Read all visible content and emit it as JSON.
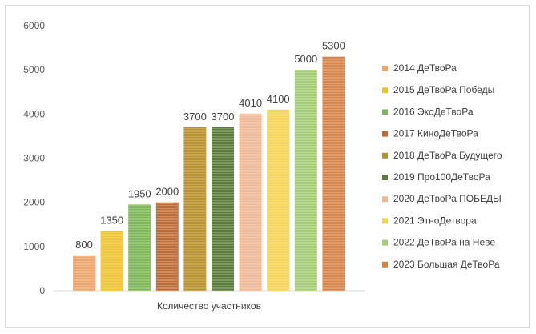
{
  "chart_data": {
    "type": "bar",
    "title": "",
    "xlabel": "",
    "ylabel": "",
    "categories": [
      "Количество участников"
    ],
    "ylim": [
      0,
      6000
    ],
    "yticks": [
      0,
      1000,
      2000,
      3000,
      4000,
      5000,
      6000
    ],
    "grid": false,
    "legend_position": "right",
    "series": [
      {
        "name": "2014 ДеТвоРа",
        "values": [
          800
        ],
        "color": "#f4a460"
      },
      {
        "name": "2015 ДеТвоРа Победы",
        "values": [
          1350
        ],
        "color": "#f5c518"
      },
      {
        "name": "2016 ЭкоДеТвоРа",
        "values": [
          1950
        ],
        "color": "#7fb850"
      },
      {
        "name": "2017 КиноДеТвоРа",
        "values": [
          2000
        ],
        "color": "#c8692c"
      },
      {
        "name": "2018 ДеТвоРа Будущего",
        "values": [
          3700
        ],
        "color": "#b8941f"
      },
      {
        "name": "2019 Про100ДеТвоРа",
        "values": [
          3700
        ],
        "color": "#5a7d3a"
      },
      {
        "name": "2020 ДеТвоРа ПОБЕДЫ",
        "values": [
          4010
        ],
        "color": "#f5b68e"
      },
      {
        "name": "2021 ЭтноДетвора",
        "values": [
          4100
        ],
        "color": "#f7d54a"
      },
      {
        "name": "2022  ДеТвоРа на Неве",
        "values": [
          5000
        ],
        "color": "#a3cf6e"
      },
      {
        "name": "2023 Большая ДеТвоРа",
        "values": [
          5300
        ],
        "color": "#e0823c"
      }
    ]
  }
}
